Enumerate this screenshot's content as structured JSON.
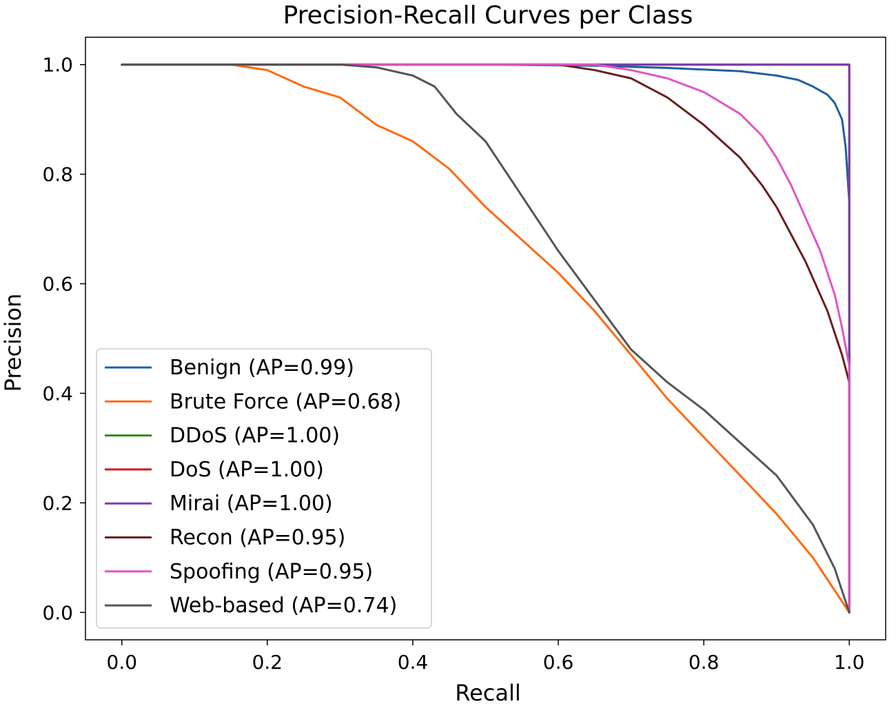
{
  "chart_data": {
    "type": "line",
    "title": "Precision-Recall Curves per Class",
    "xlabel": "Recall",
    "ylabel": "Precision",
    "xlim": [
      -0.05,
      1.05
    ],
    "ylim": [
      -0.05,
      1.05
    ],
    "xticks": [
      "0.0",
      "0.2",
      "0.4",
      "0.6",
      "0.8",
      "1.0"
    ],
    "yticks": [
      "0.0",
      "0.2",
      "0.4",
      "0.6",
      "0.8",
      "1.0"
    ],
    "grid": false,
    "legend_position": "lower-left",
    "series": [
      {
        "name": "Benign (AP=0.99)",
        "color": "#1f5fa0",
        "x": [
          0,
          0.5,
          0.65,
          0.75,
          0.85,
          0.9,
          0.93,
          0.95,
          0.97,
          0.98,
          0.99,
          0.995,
          1.0,
          1.0
        ],
        "y": [
          1.0,
          1.0,
          0.998,
          0.994,
          0.988,
          0.98,
          0.972,
          0.96,
          0.945,
          0.93,
          0.9,
          0.85,
          0.75,
          0.0
        ]
      },
      {
        "name": "Brute Force (AP=0.68)",
        "color": "#ff6a13",
        "x": [
          0,
          0.15,
          0.2,
          0.25,
          0.3,
          0.35,
          0.4,
          0.45,
          0.5,
          0.55,
          0.6,
          0.65,
          0.7,
          0.75,
          0.8,
          0.85,
          0.9,
          0.95,
          0.98,
          1.0
        ],
        "y": [
          1.0,
          1.0,
          0.99,
          0.96,
          0.94,
          0.89,
          0.86,
          0.81,
          0.74,
          0.68,
          0.62,
          0.55,
          0.47,
          0.39,
          0.32,
          0.25,
          0.18,
          0.1,
          0.04,
          0.0
        ]
      },
      {
        "name": "DDoS (AP=1.00)",
        "color": "#2e8b1e",
        "x": [
          0,
          1.0,
          1.0
        ],
        "y": [
          1.0,
          1.0,
          0.0
        ]
      },
      {
        "name": "DoS (AP=1.00)",
        "color": "#cc1a1a",
        "x": [
          0,
          1.0,
          1.0
        ],
        "y": [
          1.0,
          1.0,
          0.0
        ]
      },
      {
        "name": "Mirai (AP=1.00)",
        "color": "#7a3fb0",
        "x": [
          0,
          1.0,
          1.0
        ],
        "y": [
          1.0,
          1.0,
          0.0
        ]
      },
      {
        "name": "Recon (AP=0.95)",
        "color": "#6b1e1e",
        "x": [
          0,
          0.6,
          0.65,
          0.7,
          0.75,
          0.8,
          0.85,
          0.88,
          0.9,
          0.92,
          0.94,
          0.96,
          0.97,
          0.98,
          0.99,
          1.0,
          1.0
        ],
        "y": [
          1.0,
          1.0,
          0.99,
          0.975,
          0.94,
          0.89,
          0.83,
          0.78,
          0.74,
          0.69,
          0.64,
          0.58,
          0.55,
          0.51,
          0.47,
          0.42,
          0.0
        ]
      },
      {
        "name": "Spoofing (AP=0.95)",
        "color": "#e055c8",
        "x": [
          0,
          0.65,
          0.7,
          0.75,
          0.8,
          0.85,
          0.88,
          0.9,
          0.92,
          0.94,
          0.96,
          0.97,
          0.98,
          0.99,
          1.0,
          1.0
        ],
        "y": [
          1.0,
          1.0,
          0.99,
          0.975,
          0.95,
          0.91,
          0.87,
          0.83,
          0.78,
          0.72,
          0.66,
          0.62,
          0.58,
          0.52,
          0.45,
          0.0
        ]
      },
      {
        "name": "Web-based (AP=0.74)",
        "color": "#555555",
        "x": [
          0,
          0.3,
          0.35,
          0.4,
          0.43,
          0.46,
          0.5,
          0.55,
          0.6,
          0.65,
          0.7,
          0.75,
          0.8,
          0.85,
          0.9,
          0.95,
          0.98,
          1.0
        ],
        "y": [
          1.0,
          1.0,
          0.995,
          0.98,
          0.96,
          0.91,
          0.86,
          0.76,
          0.66,
          0.57,
          0.48,
          0.42,
          0.37,
          0.31,
          0.25,
          0.16,
          0.08,
          0.0
        ]
      }
    ]
  }
}
